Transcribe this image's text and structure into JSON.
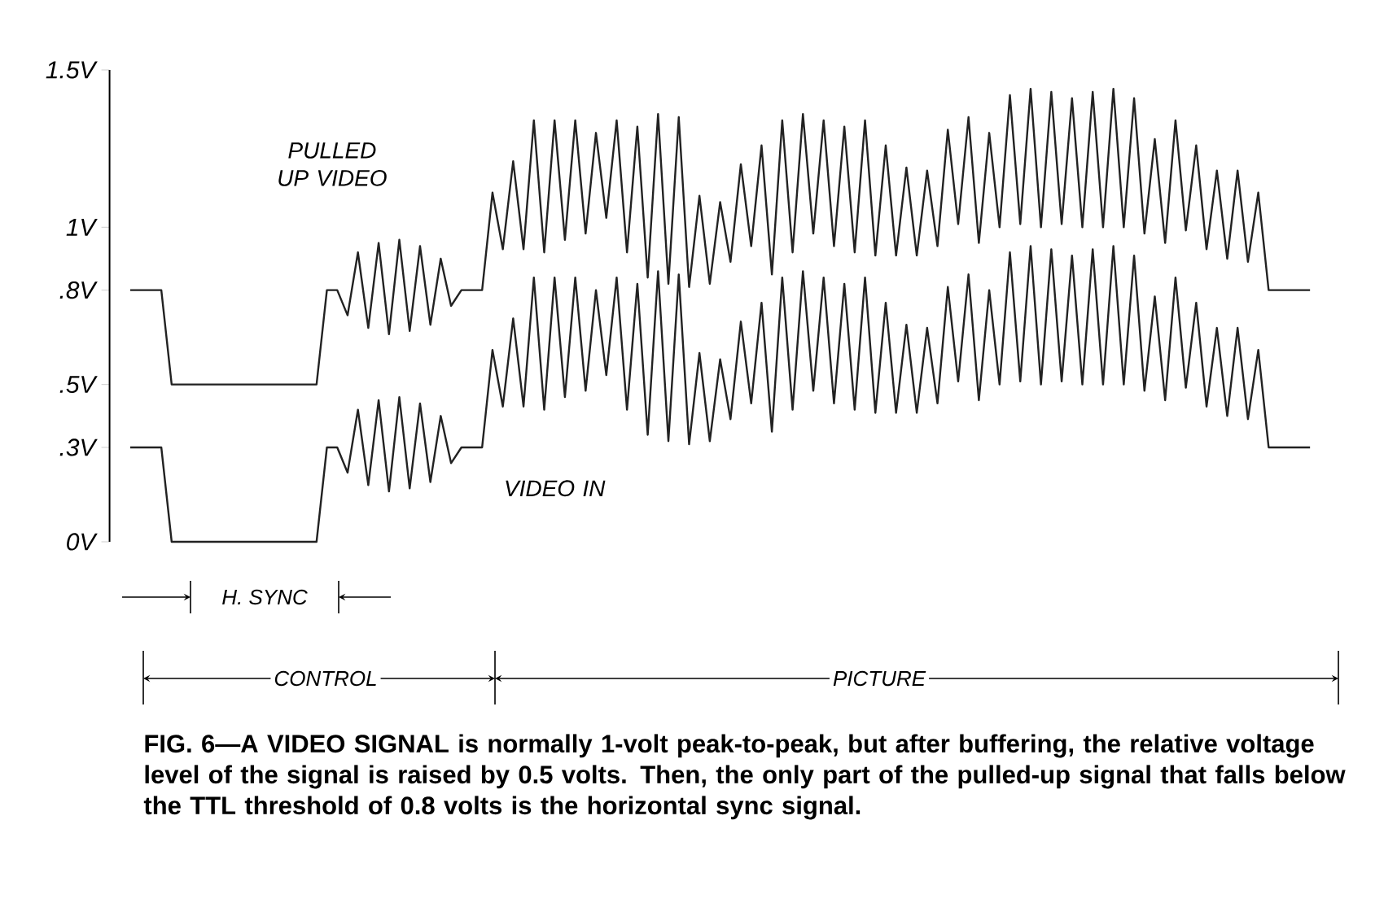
{
  "chart_data": {
    "type": "line",
    "categories": [
      null,
      null,
      null,
      null,
      null,
      null,
      null,
      null,
      null,
      null,
      null,
      null,
      null,
      null,
      null,
      null,
      null,
      null,
      null,
      null,
      null,
      null,
      null,
      null,
      null,
      null,
      null,
      null,
      null,
      null,
      null,
      null,
      null,
      null,
      null,
      null,
      null,
      null,
      null,
      null,
      null,
      null,
      null,
      null,
      null,
      null,
      null,
      null,
      null,
      null,
      null,
      null,
      null,
      null,
      null,
      null,
      null,
      null,
      null,
      null,
      null,
      null,
      null,
      null,
      null,
      null,
      null,
      null,
      null,
      null,
      null,
      null,
      null,
      null,
      null,
      null,
      null,
      null,
      null,
      null,
      null,
      null,
      null,
      null,
      null,
      null,
      null,
      null,
      null,
      null,
      null,
      null,
      null,
      null,
      null,
      null,
      null,
      null,
      null,
      null,
      null,
      null,
      null,
      null,
      null,
      null,
      null,
      null,
      null,
      null,
      null,
      null,
      null,
      null,
      null
    ],
    "series": [
      {
        "name": "PULLED UP VIDEO",
        "color": "#222222",
        "values": [
          0.8,
          0.8,
          0.8,
          0.8,
          0.5,
          0.5,
          0.5,
          0.5,
          0.5,
          0.5,
          0.5,
          0.5,
          0.5,
          0.5,
          0.5,
          0.5,
          0.5,
          0.5,
          0.5,
          0.8,
          0.8,
          0.72,
          0.92,
          0.68,
          0.95,
          0.66,
          0.96,
          0.67,
          0.94,
          0.69,
          0.9,
          0.75,
          0.8,
          0.8,
          0.8,
          1.11,
          0.93,
          1.21,
          0.93,
          1.34,
          0.92,
          1.34,
          0.96,
          1.34,
          0.98,
          1.3,
          1.03,
          1.34,
          0.92,
          1.32,
          0.84,
          1.36,
          0.82,
          1.35,
          0.81,
          1.1,
          0.82,
          1.08,
          0.89,
          1.2,
          0.94,
          1.26,
          0.85,
          1.34,
          0.92,
          1.36,
          0.98,
          1.34,
          0.94,
          1.32,
          0.92,
          1.34,
          0.91,
          1.26,
          0.91,
          1.19,
          0.91,
          1.18,
          0.94,
          1.31,
          1.01,
          1.35,
          0.95,
          1.3,
          1.0,
          1.42,
          1.01,
          1.44,
          1.0,
          1.43,
          1.01,
          1.41,
          1.0,
          1.43,
          1.0,
          1.44,
          1.0,
          1.41,
          0.98,
          1.28,
          0.95,
          1.34,
          0.99,
          1.26,
          0.93,
          1.18,
          0.9,
          1.18,
          0.89,
          1.11,
          0.8,
          0.8,
          0.8,
          0.8,
          0.8
        ]
      },
      {
        "name": "VIDEO IN",
        "color": "#222222",
        "values": [
          0.3,
          0.3,
          0.3,
          0.3,
          0,
          0,
          0,
          0,
          0,
          0,
          0,
          0,
          0,
          0,
          0,
          0,
          0,
          0,
          0,
          0.3,
          0.3,
          0.22,
          0.42,
          0.18,
          0.45,
          0.16,
          0.46,
          0.17,
          0.44,
          0.19,
          0.4,
          0.25,
          0.3,
          0.3,
          0.3,
          0.61,
          0.43,
          0.71,
          0.43,
          0.84,
          0.42,
          0.84,
          0.46,
          0.84,
          0.48,
          0.8,
          0.53,
          0.84,
          0.42,
          0.82,
          0.34,
          0.86,
          0.32,
          0.85,
          0.31,
          0.6,
          0.32,
          0.58,
          0.39,
          0.7,
          0.44,
          0.76,
          0.35,
          0.84,
          0.42,
          0.86,
          0.48,
          0.84,
          0.44,
          0.82,
          0.42,
          0.84,
          0.41,
          0.76,
          0.41,
          0.69,
          0.41,
          0.68,
          0.44,
          0.81,
          0.51,
          0.85,
          0.45,
          0.8,
          0.5,
          0.92,
          0.51,
          0.94,
          0.5,
          0.93,
          0.51,
          0.91,
          0.5,
          0.93,
          0.5,
          0.94,
          0.5,
          0.91,
          0.48,
          0.78,
          0.45,
          0.84,
          0.49,
          0.76,
          0.43,
          0.68,
          0.4,
          0.68,
          0.39,
          0.61,
          0.3,
          0.3,
          0.3,
          0.3,
          0.3
        ]
      }
    ],
    "ylim": [
      0,
      1.5
    ],
    "yticks": [
      {
        "value": 0,
        "label": "0V"
      },
      {
        "value": 0.3,
        "label": ".3V"
      },
      {
        "value": 0.5,
        "label": ".5V"
      },
      {
        "value": 0.8,
        "label": ".8V"
      },
      {
        "value": 1,
        "label": "1V"
      },
      {
        "value": 1.5,
        "label": "1.5V"
      }
    ],
    "tick_labels": "y",
    "line_style": "solid",
    "annotations": [
      "H. SYNC",
      "CONTROL",
      "PICTURE",
      "FIG. 6—A VIDEO SIGNAL is normally 1-volt peak-to-peak, but after buffering, the relative voltage level of the signal is raised by 0.5 volts. Then, the only part of the pulled-up signal that falls below the TTL threshold of 0.8 volts is the horizontal sync signal."
    ]
  }
}
